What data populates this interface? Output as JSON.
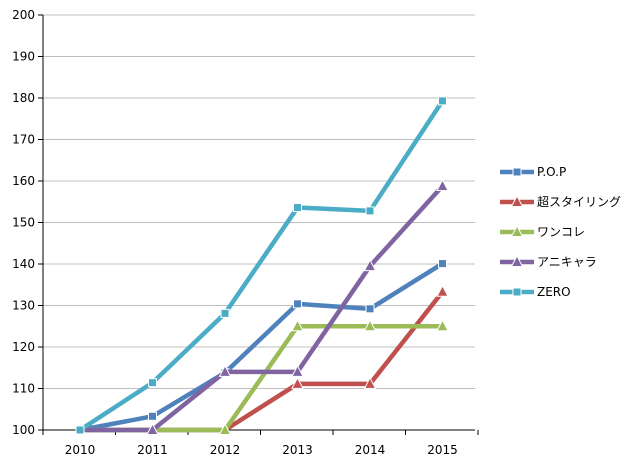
{
  "chart_data": {
    "type": "line",
    "x": [
      "2010",
      "2011",
      "2012",
      "2013",
      "2014",
      "2015"
    ],
    "ylim": [
      100,
      200
    ],
    "yticks": [
      100,
      110,
      120,
      130,
      140,
      150,
      160,
      170,
      180,
      190,
      200
    ],
    "grid": "horizontal",
    "legend_position": "right",
    "series": [
      {
        "name": "P.O.P",
        "color": "#4F81BD",
        "marker": "square",
        "values": [
          100,
          103.3,
          113.8,
          130.4,
          129.2,
          140.1
        ]
      },
      {
        "name": "超スタイリング",
        "color": "#C0504D",
        "marker": "triangle",
        "values": [
          100,
          100,
          100,
          111.1,
          111.1,
          133.3
        ]
      },
      {
        "name": "ワンコレ",
        "color": "#9BBB59",
        "marker": "triangle",
        "values": [
          100,
          100,
          100,
          125,
          125,
          125
        ]
      },
      {
        "name": "アニキャラ",
        "color": "#8064A2",
        "marker": "triangle",
        "values": [
          100,
          100,
          114,
          114,
          139.5,
          158.8
        ]
      },
      {
        "name": "ZERO",
        "color": "#4BACC6",
        "marker": "square",
        "values": [
          100,
          111.4,
          128.1,
          153.6,
          152.8,
          179.3
        ]
      }
    ]
  }
}
